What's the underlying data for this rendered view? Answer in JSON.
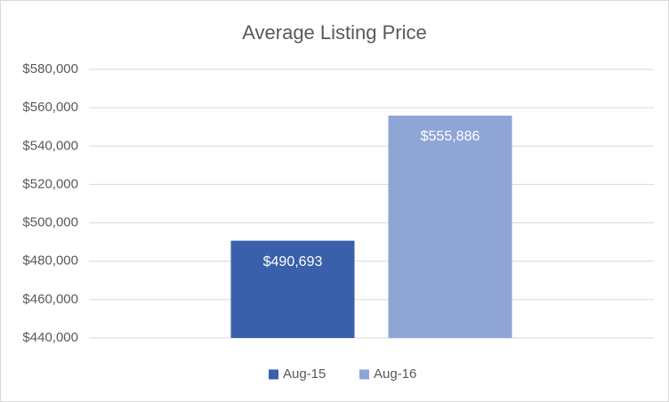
{
  "chart_data": {
    "type": "bar",
    "title": "Average Listing Price",
    "categories": [
      null
    ],
    "series": [
      {
        "name": "Aug-15",
        "color": "#3a60ac",
        "values": [
          490693
        ],
        "value_labels": [
          "$490,693"
        ]
      },
      {
        "name": "Aug-16",
        "color": "#8ea5d6",
        "values": [
          555886
        ],
        "value_labels": [
          "$555,886"
        ]
      }
    ],
    "ylim": [
      440000,
      580000
    ],
    "yticks": [
      {
        "value": 440000,
        "label": "$440,000"
      },
      {
        "value": 460000,
        "label": "$460,000"
      },
      {
        "value": 480000,
        "label": "$480,000"
      },
      {
        "value": 500000,
        "label": "$500,000"
      },
      {
        "value": 520000,
        "label": "$520,000"
      },
      {
        "value": 540000,
        "label": "$540,000"
      },
      {
        "value": 560000,
        "label": "$560,000"
      },
      {
        "value": 580000,
        "label": "$580,000"
      }
    ],
    "grid": true,
    "legend": "bottom"
  }
}
